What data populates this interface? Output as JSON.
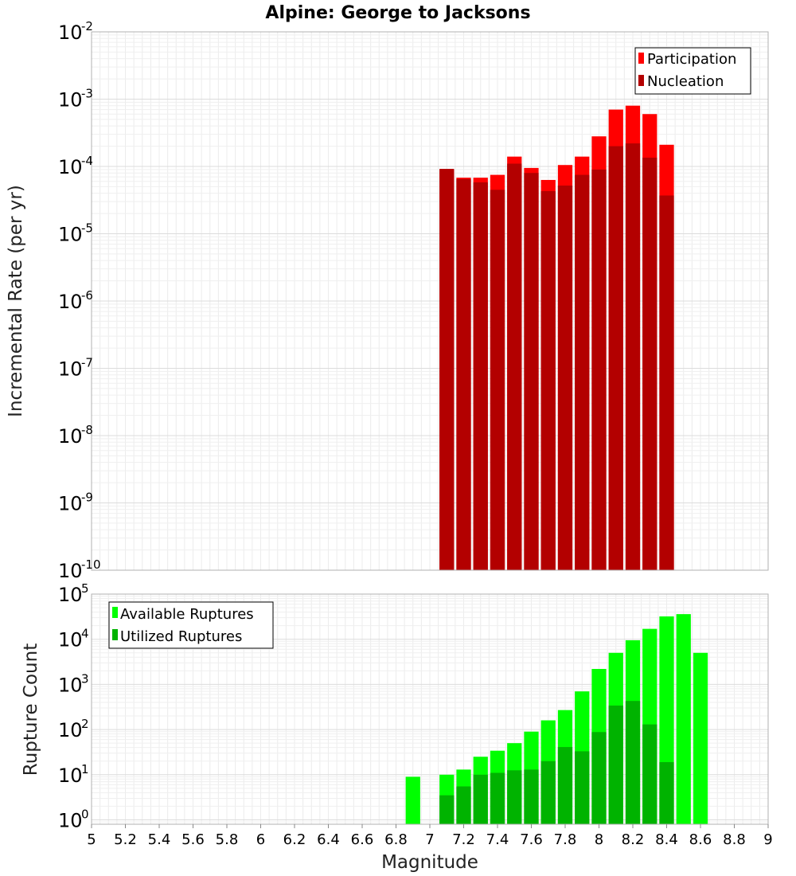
{
  "chart_data": [
    {
      "type": "bar",
      "title": "Alpine: George to Jacksons",
      "xlabel": "",
      "ylabel": "Incremental Rate (per yr)",
      "xlim": [
        5,
        9
      ],
      "ylim": [
        1e-10,
        0.01
      ],
      "yscale": "log",
      "grid": true,
      "legend": "top-right",
      "bin_width": 0.1,
      "x": [
        7.1,
        7.2,
        7.3,
        7.4,
        7.5,
        7.6,
        7.7,
        7.8,
        7.9,
        8.0,
        8.1,
        8.2,
        8.3,
        8.4
      ],
      "series": [
        {
          "name": "Participation",
          "color": "#ff0000",
          "values": [
            9e-05,
            6.8e-05,
            6.8e-05,
            7.5e-05,
            0.00014,
            9.5e-05,
            6.3e-05,
            0.000105,
            0.00014,
            0.00028,
            0.0007,
            0.0008,
            0.0006,
            0.00021
          ]
        },
        {
          "name": "Nucleation",
          "color": "#b30000",
          "values": [
            9.2e-05,
            6.5e-05,
            5.8e-05,
            4.5e-05,
            0.00011,
            8e-05,
            4.3e-05,
            5.2e-05,
            7.5e-05,
            9e-05,
            0.0002,
            0.00022,
            0.000135,
            3.7e-05
          ]
        }
      ]
    },
    {
      "type": "bar",
      "title": "",
      "xlabel": "Magnitude",
      "ylabel": "Rupture Count",
      "xlim": [
        5,
        9
      ],
      "ylim": [
        0.8,
        100000.0
      ],
      "yscale": "log",
      "grid": true,
      "legend": "top-left",
      "bin_width": 0.1,
      "x": [
        6.9,
        7.1,
        7.2,
        7.3,
        7.4,
        7.5,
        7.6,
        7.7,
        7.8,
        7.9,
        8.0,
        8.1,
        8.2,
        8.3,
        8.4,
        8.5,
        8.6
      ],
      "series": [
        {
          "name": "Available Ruptures",
          "color": "#00ff00",
          "values": [
            9,
            10,
            13,
            25,
            34,
            50,
            90,
            160,
            270,
            700,
            2200,
            5000,
            9500,
            17000,
            32000,
            36000,
            5000
          ]
        },
        {
          "name": "Utilized Ruptures",
          "color": "#00b300",
          "values": [
            0,
            3.5,
            5.5,
            10,
            11,
            12.5,
            13,
            20,
            41,
            33,
            88,
            340,
            430,
            130,
            19,
            0,
            0
          ]
        }
      ],
      "xticks": [
        "5",
        "5.2",
        "5.4",
        "5.6",
        "5.8",
        "6",
        "6.2",
        "6.4",
        "6.6",
        "6.8",
        "7",
        "7.2",
        "7.4",
        "7.6",
        "7.8",
        "8",
        "8.2",
        "8.4",
        "8.6",
        "8.8",
        "9"
      ]
    }
  ]
}
